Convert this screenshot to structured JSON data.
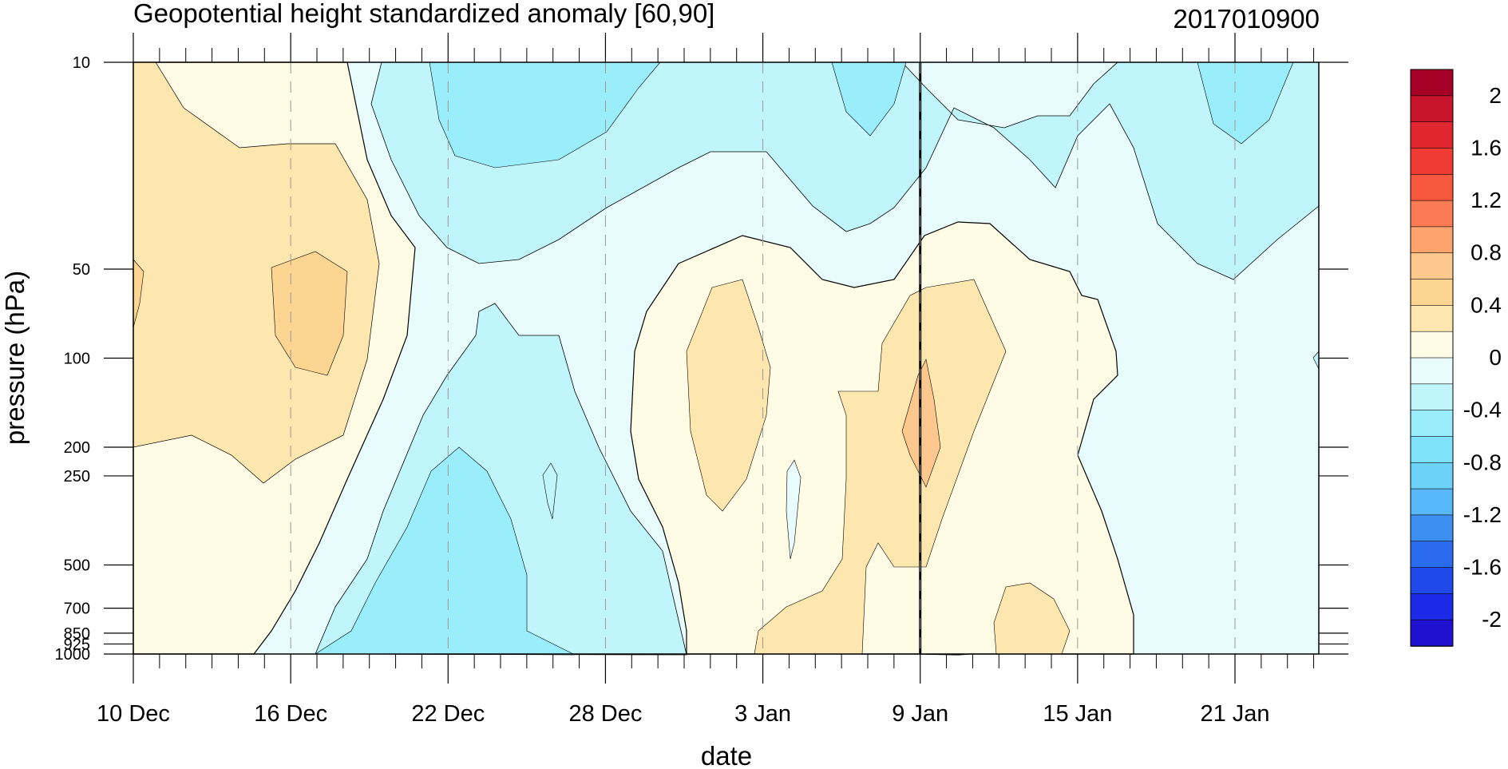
{
  "chart_data": {
    "type": "heatmap",
    "title": "Geopotential height standardized anomaly [60,90]",
    "subtitle": "2017010900",
    "xlabel": "date",
    "ylabel": "pressure (hPa)",
    "x_tick_labels": [
      "10 Dec",
      "16 Dec",
      "22 Dec",
      "28 Dec",
      "3 Jan",
      "9 Jan",
      "15 Jan",
      "21 Jan"
    ],
    "x_tick_days": [
      0,
      6,
      12,
      18,
      24,
      30,
      36,
      42
    ],
    "x_range_days": [
      0,
      45
    ],
    "y_scale": "log",
    "y_range_hpa": [
      10,
      1000
    ],
    "y_tick_values": [
      10,
      50,
      100,
      200,
      250,
      500,
      700,
      850,
      925,
      1000
    ],
    "y_tick_labels": [
      "10",
      "50",
      "100",
      "200",
      "250",
      "500",
      "700",
      "850",
      "925",
      "1000"
    ],
    "marker_day": 30,
    "colorbar": {
      "labels": [
        "2",
        "1.6",
        "1.2",
        "0.8",
        "0.4",
        "0",
        "-0.4",
        "-0.8",
        "-1.2",
        "-1.6",
        "-2"
      ],
      "colors": [
        "#a50026",
        "#c9152c",
        "#e0272f",
        "#f03b35",
        "#f7573c",
        "#fb7c54",
        "#fca36e",
        "#fdc88e",
        "#fdd592",
        "#fee7ae",
        "#fffbe4",
        "#e8fcfd",
        "#c0f5fb",
        "#9aeefc",
        "#7fe3fa",
        "#6dd2f8",
        "#58b7f6",
        "#3d8ff2",
        "#2b6bee",
        "#1f49eb",
        "#1a2ae7",
        "#2010d0"
      ]
    }
  }
}
